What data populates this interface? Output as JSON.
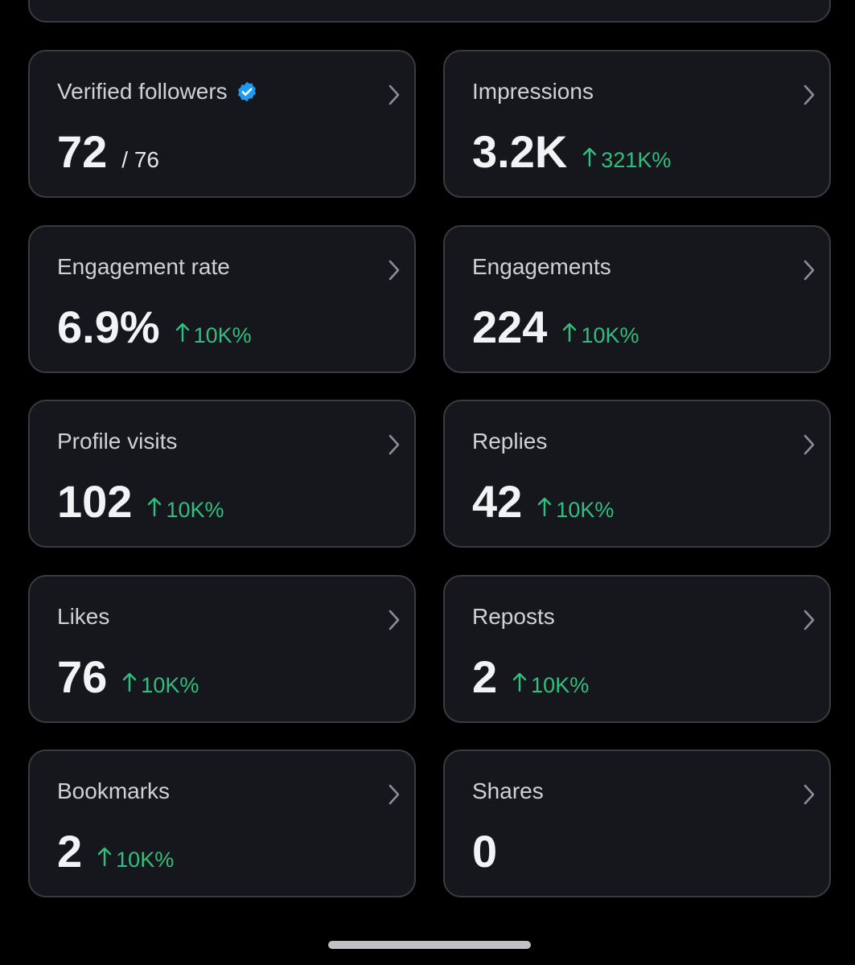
{
  "cards": [
    {
      "label": "Verified followers",
      "value": "72",
      "total": "/ 76",
      "verified": true
    },
    {
      "label": "Impressions",
      "value": "3.2K",
      "change": "321K%"
    },
    {
      "label": "Engagement rate",
      "value": "6.9%",
      "change": "10K%"
    },
    {
      "label": "Engagements",
      "value": "224",
      "change": "10K%"
    },
    {
      "label": "Profile visits",
      "value": "102",
      "change": "10K%"
    },
    {
      "label": "Replies",
      "value": "42",
      "change": "10K%"
    },
    {
      "label": "Likes",
      "value": "76",
      "change": "10K%"
    },
    {
      "label": "Reposts",
      "value": "2",
      "change": "10K%"
    },
    {
      "label": "Bookmarks",
      "value": "2",
      "change": "10K%"
    },
    {
      "label": "Shares",
      "value": "0"
    }
  ]
}
